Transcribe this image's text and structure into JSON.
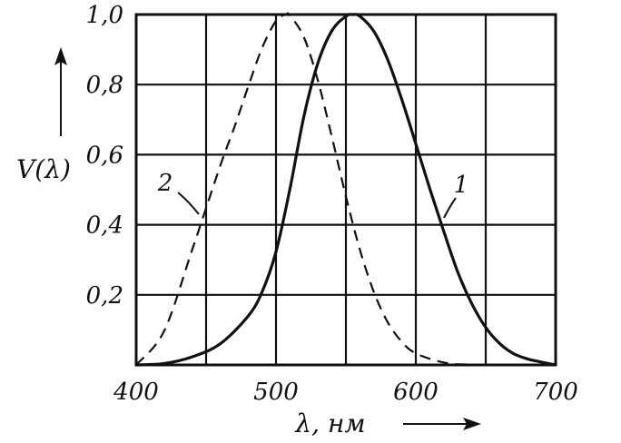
{
  "chart_data": {
    "type": "line",
    "title": "",
    "xlabel": "λ, нм",
    "ylabel": "V(λ)",
    "xlim": [
      400,
      700
    ],
    "ylim": [
      0,
      1.0
    ],
    "grid": true,
    "x_ticks": [
      400,
      500,
      600,
      700
    ],
    "x_tick_labels": [
      "400",
      "500",
      "600",
      "700"
    ],
    "y_ticks": [
      0.2,
      0.4,
      0.6,
      0.8,
      1.0
    ],
    "y_tick_labels": [
      "0,2",
      "0,4",
      "0,6",
      "0,8",
      "1,0"
    ],
    "series": [
      {
        "name": "1",
        "style": "solid",
        "x": [
          400,
          420,
          440,
          460,
          480,
          490,
          500,
          510,
          520,
          530,
          540,
          550,
          555,
          560,
          570,
          580,
          590,
          600,
          610,
          620,
          630,
          640,
          650,
          660,
          670,
          680,
          690,
          700
        ],
        "y": [
          0.0,
          0.004,
          0.023,
          0.06,
          0.139,
          0.208,
          0.323,
          0.503,
          0.71,
          0.862,
          0.954,
          0.995,
          1.0,
          0.995,
          0.952,
          0.87,
          0.757,
          0.631,
          0.503,
          0.381,
          0.265,
          0.175,
          0.107,
          0.061,
          0.032,
          0.017,
          0.008,
          0.0
        ]
      },
      {
        "name": "2",
        "style": "dashed",
        "x": [
          400,
          420,
          440,
          460,
          470,
          480,
          490,
          500,
          507,
          510,
          520,
          530,
          540,
          550,
          560,
          570,
          580,
          590,
          600,
          620,
          640,
          700
        ],
        "y": [
          0.0,
          0.097,
          0.328,
          0.567,
          0.676,
          0.793,
          0.904,
          0.982,
          1.0,
          0.997,
          0.935,
          0.811,
          0.65,
          0.481,
          0.329,
          0.208,
          0.121,
          0.066,
          0.033,
          0.007,
          0.001,
          0.0
        ]
      }
    ],
    "labels": [
      "1",
      "2"
    ]
  }
}
